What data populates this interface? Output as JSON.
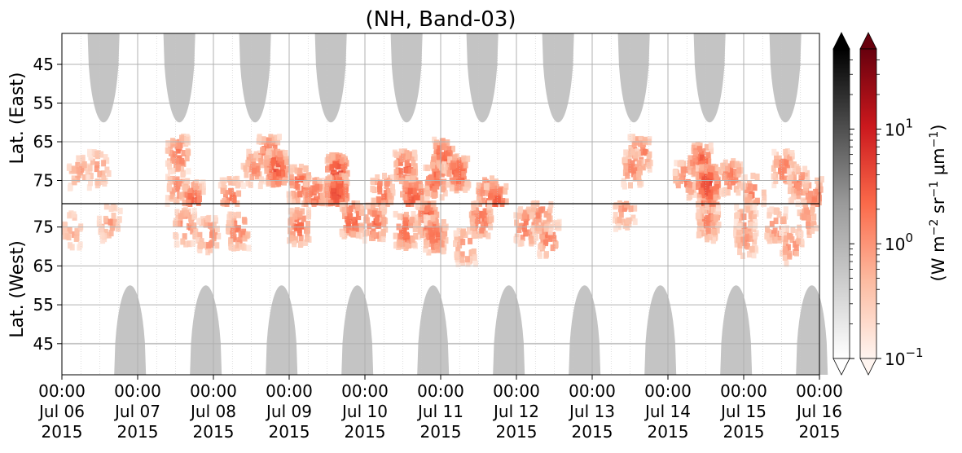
{
  "chart_data": {
    "type": "heatmap",
    "title": "(NH, Band-03)",
    "ylabel_top": "Lat. (East)",
    "ylabel_bottom": "Lat. (West)",
    "y_ticks_top": [
      45,
      55,
      65,
      75
    ],
    "y_ticks_bottom": [
      75,
      65,
      55,
      45
    ],
    "y_range_top": [
      37,
      81
    ],
    "y_range_bottom": [
      81,
      37
    ],
    "x_range": [
      "2015-07-06 00:00",
      "2015-07-16 00:00"
    ],
    "x_ticks": [
      {
        "time": "00:00",
        "date": "Jul 06",
        "year": "2015"
      },
      {
        "time": "00:00",
        "date": "Jul 07",
        "year": "2015"
      },
      {
        "time": "00:00",
        "date": "Jul 08",
        "year": "2015"
      },
      {
        "time": "00:00",
        "date": "Jul 09",
        "year": "2015"
      },
      {
        "time": "00:00",
        "date": "Jul 10",
        "year": "2015"
      },
      {
        "time": "00:00",
        "date": "Jul 11",
        "year": "2015"
      },
      {
        "time": "00:00",
        "date": "Jul 12",
        "year": "2015"
      },
      {
        "time": "00:00",
        "date": "Jul 13",
        "year": "2015"
      },
      {
        "time": "00:00",
        "date": "Jul 14",
        "year": "2015"
      },
      {
        "time": "00:00",
        "date": "Jul 15",
        "year": "2015"
      },
      {
        "time": "00:00",
        "date": "Jul 16",
        "year": "2015"
      }
    ],
    "grid": true,
    "colorbar_label": "(W m$^{-2}$ sr$^{-1}$ μm$^{-1}$)",
    "colorbar_ticks": [
      {
        "value": 0.1,
        "label_base": "10",
        "label_exp": "−1"
      },
      {
        "value": 1,
        "label_base": "10",
        "label_exp": "0"
      },
      {
        "value": 10,
        "label_base": "10",
        "label_exp": "1"
      }
    ],
    "colorbar_range": [
      0.1,
      50
    ],
    "colormaps": [
      "Greys",
      "Reds"
    ],
    "daylight_bands_top_days": [
      0.55,
      1.55,
      2.55,
      3.55,
      4.55,
      5.55,
      6.55,
      7.55,
      8.55,
      9.55
    ],
    "daylight_bands_bottom_days": [
      0.9,
      1.9,
      2.9,
      3.9,
      4.9,
      5.9,
      6.9,
      7.9,
      8.9,
      9.9
    ],
    "daylight_band_edge_lat": 60,
    "emission_events": [
      {
        "day": 0.2,
        "lat": 73,
        "side": "east",
        "peak": 0.8
      },
      {
        "day": 0.45,
        "lat": 72,
        "side": "east",
        "peak": 0.9
      },
      {
        "day": 0.1,
        "lat": 74,
        "side": "west",
        "peak": 0.7
      },
      {
        "day": 0.6,
        "lat": 76,
        "side": "west",
        "peak": 0.9
      },
      {
        "day": 1.5,
        "lat": 77,
        "side": "east",
        "peak": 1.2
      },
      {
        "day": 1.7,
        "lat": 80,
        "side": "east",
        "peak": 2.5
      },
      {
        "day": 1.5,
        "lat": 68,
        "side": "east",
        "peak": 2.0
      },
      {
        "day": 1.6,
        "lat": 75,
        "side": "west",
        "peak": 1.6
      },
      {
        "day": 1.9,
        "lat": 73,
        "side": "west",
        "peak": 1.5
      },
      {
        "day": 2.2,
        "lat": 79,
        "side": "east",
        "peak": 1.8
      },
      {
        "day": 2.5,
        "lat": 72,
        "side": "east",
        "peak": 1.2
      },
      {
        "day": 2.7,
        "lat": 68,
        "side": "east",
        "peak": 2.4
      },
      {
        "day": 2.8,
        "lat": 72,
        "side": "east",
        "peak": 4.0
      },
      {
        "day": 2.3,
        "lat": 74,
        "side": "west",
        "peak": 2.0
      },
      {
        "day": 3.1,
        "lat": 76,
        "side": "east",
        "peak": 2.6
      },
      {
        "day": 3.3,
        "lat": 79,
        "side": "east",
        "peak": 2.4
      },
      {
        "day": 3.1,
        "lat": 75,
        "side": "west",
        "peak": 2.2
      },
      {
        "day": 3.6,
        "lat": 73,
        "side": "east",
        "peak": 4.5
      },
      {
        "day": 3.6,
        "lat": 78,
        "side": "east",
        "peak": 5.0
      },
      {
        "day": 3.8,
        "lat": 77,
        "side": "west",
        "peak": 3.0
      },
      {
        "day": 4.2,
        "lat": 78,
        "side": "east",
        "peak": 2.2
      },
      {
        "day": 4.1,
        "lat": 76,
        "side": "west",
        "peak": 2.4
      },
      {
        "day": 4.5,
        "lat": 72,
        "side": "east",
        "peak": 2.8
      },
      {
        "day": 4.6,
        "lat": 79,
        "side": "east",
        "peak": 3.5
      },
      {
        "day": 4.8,
        "lat": 77,
        "side": "west",
        "peak": 3.2
      },
      {
        "day": 4.5,
        "lat": 74,
        "side": "west",
        "peak": 2.5
      },
      {
        "day": 5.0,
        "lat": 69,
        "side": "east",
        "peak": 3.0
      },
      {
        "day": 4.9,
        "lat": 75,
        "side": "east",
        "peak": 2.6
      },
      {
        "day": 5.2,
        "lat": 73,
        "side": "east",
        "peak": 3.0
      },
      {
        "day": 4.9,
        "lat": 73,
        "side": "west",
        "peak": 2.5
      },
      {
        "day": 5.3,
        "lat": 70,
        "side": "west",
        "peak": 1.4
      },
      {
        "day": 5.6,
        "lat": 79,
        "side": "east",
        "peak": 2.8
      },
      {
        "day": 5.7,
        "lat": 80,
        "side": "east",
        "peak": 3.2
      },
      {
        "day": 5.5,
        "lat": 77,
        "side": "west",
        "peak": 2.2
      },
      {
        "day": 6.1,
        "lat": 75,
        "side": "west",
        "peak": 2.0
      },
      {
        "day": 6.4,
        "lat": 72,
        "side": "west",
        "peak": 1.6
      },
      {
        "day": 6.3,
        "lat": 78,
        "side": "west",
        "peak": 1.5
      },
      {
        "day": 7.6,
        "lat": 68,
        "side": "east",
        "peak": 2.0
      },
      {
        "day": 7.5,
        "lat": 72,
        "side": "east",
        "peak": 1.4
      },
      {
        "day": 7.4,
        "lat": 79,
        "side": "west",
        "peak": 1.0
      },
      {
        "day": 8.2,
        "lat": 75,
        "side": "east",
        "peak": 1.8
      },
      {
        "day": 8.4,
        "lat": 70,
        "side": "east",
        "peak": 3.0
      },
      {
        "day": 8.5,
        "lat": 76,
        "side": "east",
        "peak": 5.5
      },
      {
        "day": 8.5,
        "lat": 79,
        "side": "west",
        "peak": 3.2
      },
      {
        "day": 8.8,
        "lat": 74,
        "side": "east",
        "peak": 1.8
      },
      {
        "day": 9.1,
        "lat": 78,
        "side": "east",
        "peak": 1.5
      },
      {
        "day": 9.0,
        "lat": 76,
        "side": "west",
        "peak": 1.2
      },
      {
        "day": 8.5,
        "lat": 76,
        "side": "west",
        "peak": 1.5
      },
      {
        "day": 9.5,
        "lat": 72,
        "side": "east",
        "peak": 1.8
      },
      {
        "day": 9.4,
        "lat": 75,
        "side": "west",
        "peak": 1.4
      },
      {
        "day": 9.0,
        "lat": 72,
        "side": "west",
        "peak": 1.0
      },
      {
        "day": 9.6,
        "lat": 70,
        "side": "west",
        "peak": 1.2
      },
      {
        "day": 9.7,
        "lat": 76,
        "side": "east",
        "peak": 1.4
      },
      {
        "day": 9.9,
        "lat": 79,
        "side": "east",
        "peak": 1.8
      },
      {
        "day": 9.8,
        "lat": 77,
        "side": "west",
        "peak": 1.0
      }
    ]
  }
}
